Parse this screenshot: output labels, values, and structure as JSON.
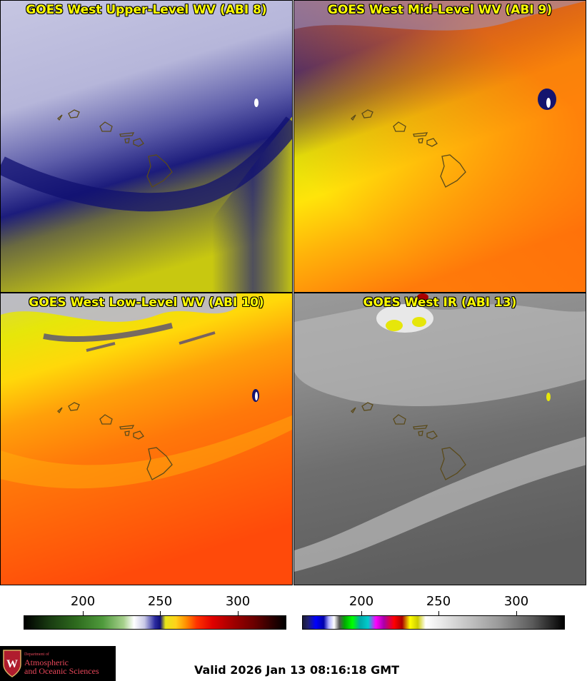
{
  "panels": [
    {
      "id": "p1",
      "title": "GOES West Upper-Level WV (ABI 8)"
    },
    {
      "id": "p2",
      "title": "GOES West Mid-Level WV (ABI 9)"
    },
    {
      "id": "p3",
      "title": "GOES West Low-Level WV (ABI 10)"
    },
    {
      "id": "p4",
      "title": "GOES West IR (ABI 13)"
    }
  ],
  "colorbars": {
    "left": {
      "ticks": [
        "200",
        "250",
        "300"
      ]
    },
    "right": {
      "ticks": [
        "200",
        "250",
        "300"
      ]
    }
  },
  "logo": {
    "dept_line1": "Department of",
    "name_line1": "Atmospheric",
    "name_line2": "and Oceanic Sciences"
  },
  "valid_text": "Valid 2026 Jan 13 08:16:18 GMT",
  "colors": {
    "title_text": "#ffff00",
    "coastline": "#5a4a1a",
    "logo_text": "#e8475a"
  }
}
